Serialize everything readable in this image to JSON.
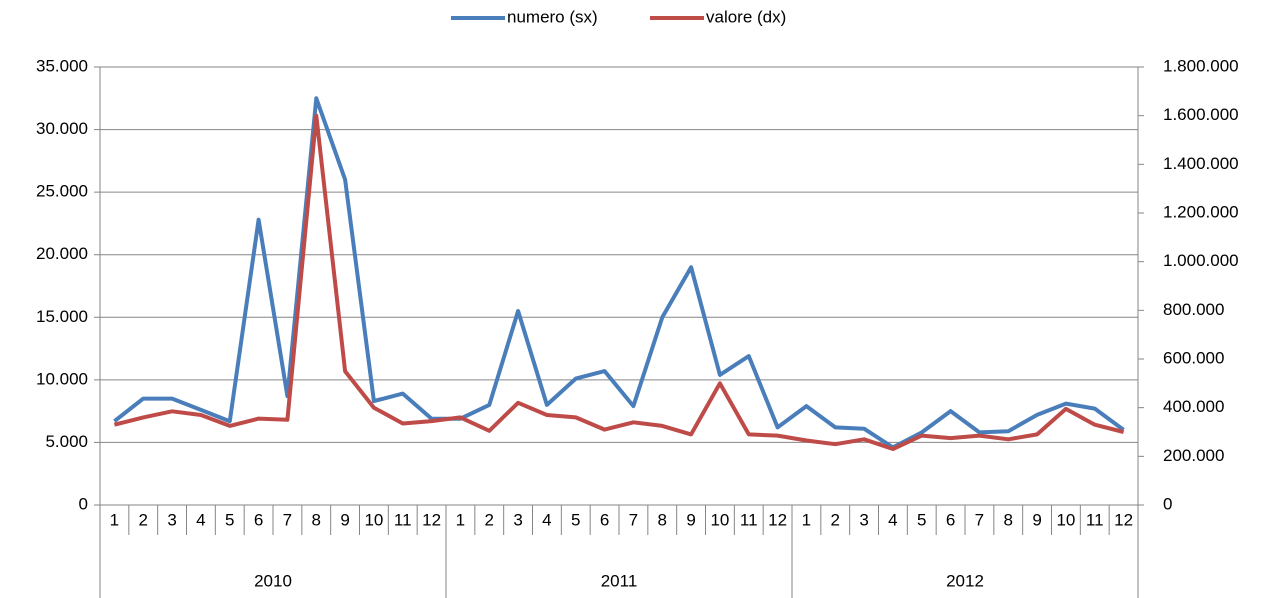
{
  "chart_data": {
    "type": "line",
    "categories": [
      "1",
      "2",
      "3",
      "4",
      "5",
      "6",
      "7",
      "8",
      "9",
      "10",
      "11",
      "12",
      "1",
      "2",
      "3",
      "4",
      "5",
      "6",
      "7",
      "8",
      "9",
      "10",
      "11",
      "12",
      "1",
      "2",
      "3",
      "4",
      "5",
      "6",
      "7",
      "8",
      "9",
      "10",
      "11",
      "12"
    ],
    "groups": [
      "2010",
      "2011",
      "2012"
    ],
    "series": [
      {
        "name": "numero (sx)",
        "color": "#4a7ebb",
        "axis": "y",
        "values": [
          6700,
          8500,
          8500,
          7600,
          6700,
          22800,
          8700,
          32500,
          26000,
          8300,
          8900,
          6900,
          6900,
          8000,
          15500,
          8000,
          10100,
          10700,
          7900,
          15000,
          19000,
          10400,
          11900,
          6200,
          7900,
          6200,
          6100,
          4600,
          5800,
          7500,
          5800,
          5900,
          7200,
          8100,
          7700,
          6000
        ]
      },
      {
        "name": "valore (dx)",
        "color": "#be4b48",
        "axis": "y2",
        "values": [
          330000,
          360000,
          385000,
          370000,
          325000,
          355000,
          350000,
          1600000,
          550000,
          400000,
          335000,
          345000,
          360000,
          305000,
          420000,
          370000,
          360000,
          310000,
          340000,
          325000,
          290000,
          500000,
          290000,
          285000,
          265000,
          250000,
          270000,
          230000,
          285000,
          275000,
          285000,
          270000,
          290000,
          395000,
          330000,
          300000
        ]
      }
    ],
    "ylim": [
      0,
      35000
    ],
    "yticks": [
      0,
      {
        "value": 5000,
        "label": "5.000"
      },
      {
        "value": 10000,
        "label": "10.000"
      },
      {
        "value": 15000,
        "label": "15.000"
      },
      {
        "value": 20000,
        "label": "20.000"
      },
      {
        "value": 25000,
        "label": "25.000"
      },
      {
        "value": 30000,
        "label": "30.000"
      },
      {
        "value": 35000,
        "label": "35.000"
      }
    ],
    "y2lim": [
      0,
      1800000
    ],
    "y2ticks": [
      0,
      {
        "value": 200000,
        "label": "200.000"
      },
      {
        "value": 400000,
        "label": "400.000"
      },
      {
        "value": 600000,
        "label": "600.000"
      },
      {
        "value": 800000,
        "label": "800.000"
      },
      {
        "value": 1000000,
        "label": "1.000.000"
      },
      {
        "value": 1200000,
        "label": "1.200.000"
      },
      {
        "value": 1400000,
        "label": "1.400.000"
      },
      {
        "value": 1600000,
        "label": "1.600.000"
      },
      {
        "value": 1800000,
        "label": "1.800.000"
      }
    ],
    "grid": true,
    "legend": "top"
  }
}
